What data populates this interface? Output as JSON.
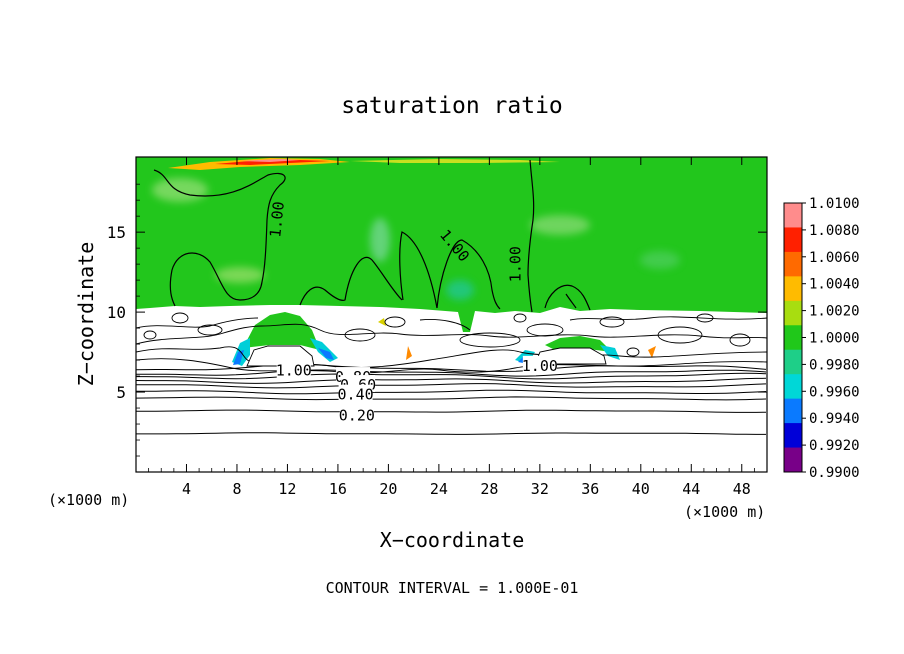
{
  "chart_data": {
    "type": "heatmap",
    "title": "saturation ratio",
    "xlabel": "X−coordinate",
    "ylabel": "Z−coordinate",
    "x_unit_left": "(×1000 m)",
    "x_unit_right": "(×1000 m)",
    "x_ticks": [
      4,
      8,
      12,
      16,
      20,
      24,
      28,
      32,
      36,
      40,
      44,
      48
    ],
    "y_ticks": [
      5,
      10,
      15
    ],
    "xlim": [
      0,
      50
    ],
    "ylim": [
      0,
      19.7
    ],
    "footer": "CONTOUR INTERVAL = 1.000E-01",
    "colorbar": {
      "labels": [
        "1.0100",
        "1.0080",
        "1.0060",
        "1.0040",
        "1.0020",
        "1.0000",
        "0.9980",
        "0.9960",
        "0.9940",
        "0.9920",
        "0.9900"
      ],
      "colors": [
        "#ff8c8c",
        "#ff2000",
        "#ff6a00",
        "#ffbb00",
        "#a8dd10",
        "#20c81a",
        "#1ecf88",
        "#00d7d7",
        "#0a7aff",
        "#0000d8",
        "#780088"
      ]
    },
    "contour_labels": [
      {
        "text": "1.00",
        "x": 11.1,
        "z": 15.8,
        "rot": -84
      },
      {
        "text": "1.00",
        "x": 25.3,
        "z": 14.2,
        "rot": 50
      },
      {
        "text": "1.00",
        "x": 30.0,
        "z": 13.0,
        "rot": -90
      },
      {
        "text": "1.00",
        "x": 12.5,
        "z": 6.4,
        "rot": 0
      },
      {
        "text": "1.00",
        "x": 32.0,
        "z": 6.7,
        "rot": 0
      },
      {
        "text": "0.80",
        "x": 17.2,
        "z": 6.0,
        "rot": 0
      },
      {
        "text": "0.60",
        "x": 17.6,
        "z": 5.5,
        "rot": 0
      },
      {
        "text": "0.40",
        "x": 17.4,
        "z": 4.9,
        "rot": 0
      },
      {
        "text": "0.20",
        "x": 17.5,
        "z": 3.6,
        "rot": 0
      }
    ],
    "lower_contour_levels_z": [
      2.4,
      3.8,
      4.6,
      5.0,
      5.4,
      5.7,
      6.0,
      6.2,
      6.5
    ]
  }
}
